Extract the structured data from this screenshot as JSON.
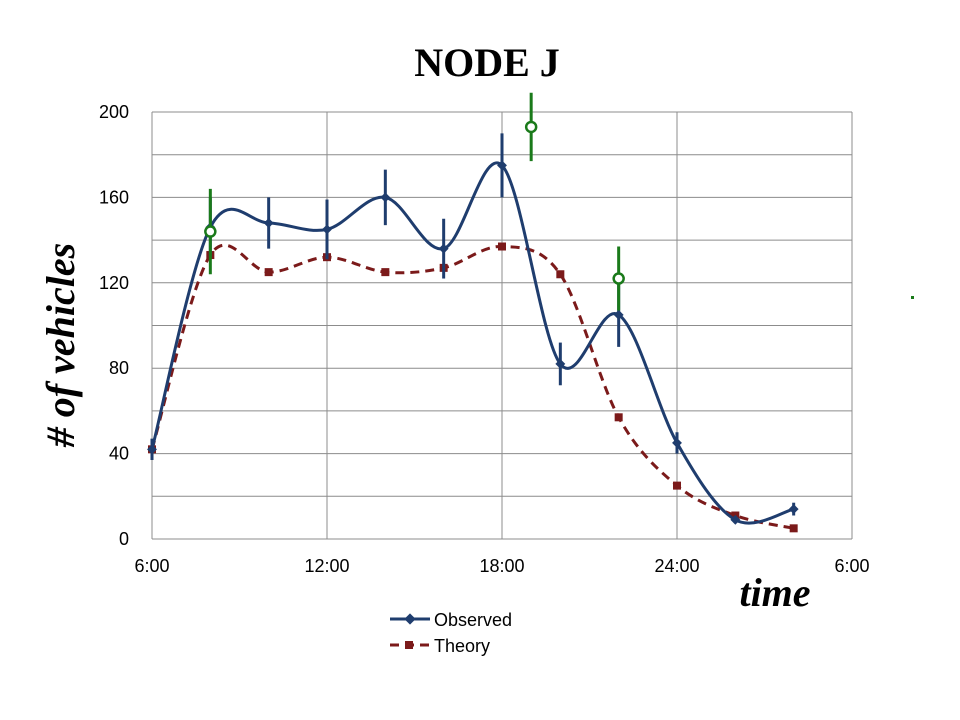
{
  "chart_data": {
    "type": "line",
    "title": "NODE J",
    "xlabel": "time",
    "ylabel": "# of vehicles",
    "x_ticks": [
      "6:00",
      "12:00",
      "18:00",
      "24:00",
      "6:00"
    ],
    "y_ticks": [
      "0",
      "40",
      "80",
      "120",
      "160",
      "200"
    ],
    "xlim": [
      6,
      30
    ],
    "ylim": [
      0,
      200
    ],
    "grid": true,
    "legend_position": "bottom",
    "series": [
      {
        "name": "Observed",
        "color": "#1f3d6e",
        "style": "solid-smooth-diamond",
        "points": [
          {
            "x": 6,
            "y": 42,
            "err": 5
          },
          {
            "x": 8,
            "y": 146,
            "err": 14
          },
          {
            "x": 10,
            "y": 148,
            "err": 12
          },
          {
            "x": 12,
            "y": 145,
            "err": 14
          },
          {
            "x": 14,
            "y": 160,
            "err": 13
          },
          {
            "x": 16,
            "y": 136,
            "err": 14
          },
          {
            "x": 18,
            "y": 175,
            "err": 15
          },
          {
            "x": 20,
            "y": 82,
            "err": 10
          },
          {
            "x": 22,
            "y": 105,
            "err": 15
          },
          {
            "x": 24,
            "y": 45,
            "err": 5
          },
          {
            "x": 26,
            "y": 9,
            "err": 0
          },
          {
            "x": 28,
            "y": 14,
            "err": 3
          }
        ]
      },
      {
        "name": "Theory",
        "color": "#7b1a1a",
        "style": "dashed-smooth-square",
        "points": [
          {
            "x": 6,
            "y": 42
          },
          {
            "x": 8,
            "y": 133
          },
          {
            "x": 10,
            "y": 125
          },
          {
            "x": 12,
            "y": 132
          },
          {
            "x": 14,
            "y": 125
          },
          {
            "x": 16,
            "y": 127
          },
          {
            "x": 18,
            "y": 137
          },
          {
            "x": 20,
            "y": 124
          },
          {
            "x": 22,
            "y": 57
          },
          {
            "x": 24,
            "y": 25
          },
          {
            "x": 26,
            "y": 11
          },
          {
            "x": 28,
            "y": 5
          }
        ]
      }
    ],
    "extra_points": {
      "color": "#1a7a1a",
      "points": [
        {
          "x": 8,
          "y": 144,
          "err": 20
        },
        {
          "x": 19,
          "y": 193,
          "err": 16
        },
        {
          "x": 22,
          "y": 122,
          "err": 15
        }
      ]
    }
  }
}
